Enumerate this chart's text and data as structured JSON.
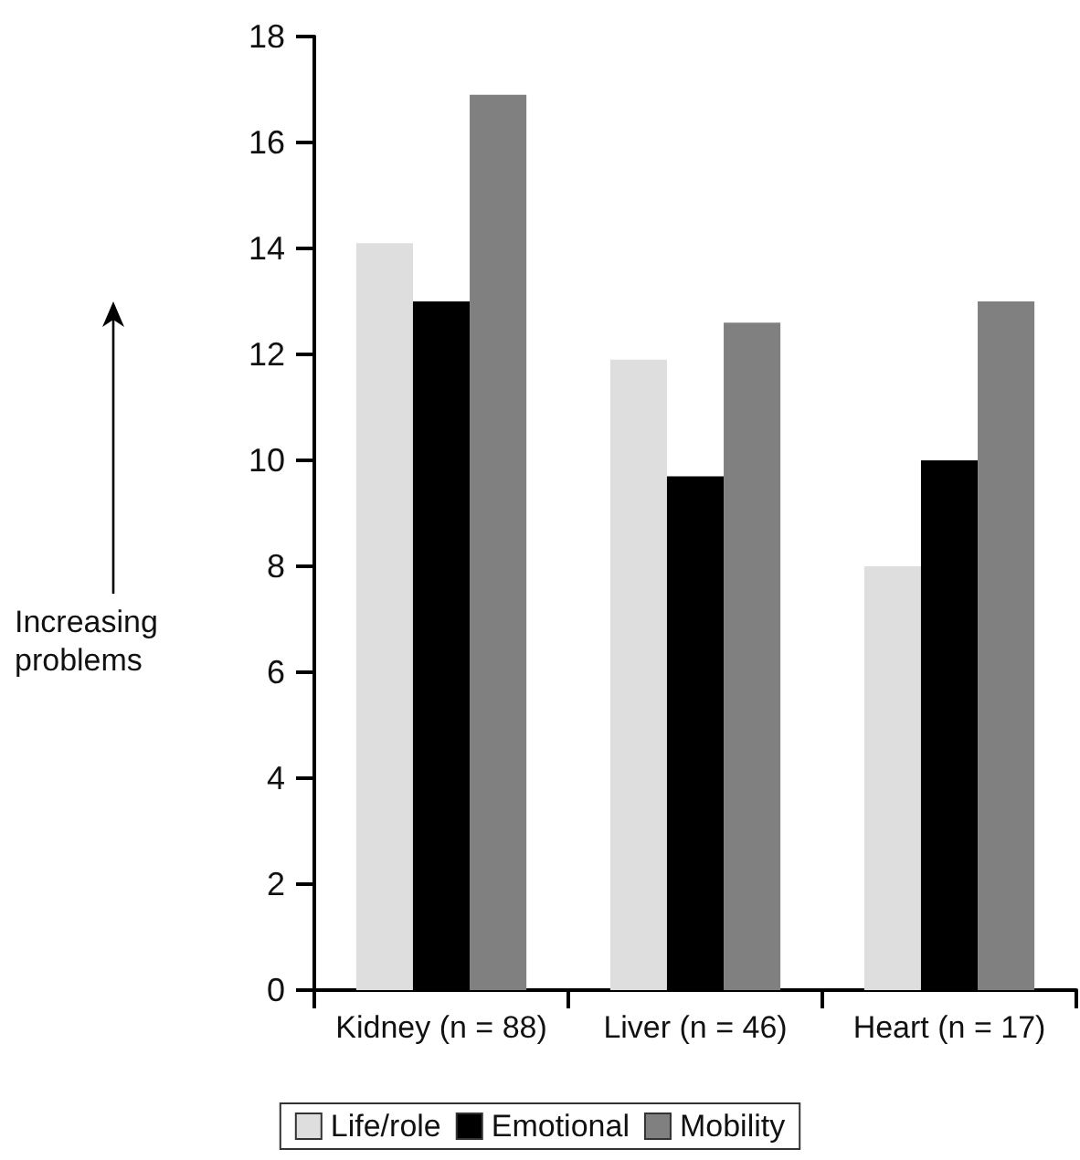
{
  "chart_data": {
    "type": "bar",
    "ylabel": "Increasing problems",
    "categories": [
      "Kidney (n = 88)",
      "Liver (n = 46)",
      "Heart (n = 17)"
    ],
    "series": [
      {
        "name": "Life/role",
        "color": "#dedede",
        "values": [
          14.1,
          11.9,
          8.0
        ]
      },
      {
        "name": "Emotional",
        "color": "#000000",
        "values": [
          13.0,
          9.7,
          10.0
        ]
      },
      {
        "name": "Mobility",
        "color": "#808080",
        "values": [
          16.9,
          12.6,
          13.0
        ]
      }
    ],
    "ylim": [
      0,
      18
    ],
    "yticks": [
      0,
      2,
      4,
      6,
      8,
      10,
      12,
      14,
      16,
      18
    ],
    "grid": false,
    "legend": "bottom"
  }
}
